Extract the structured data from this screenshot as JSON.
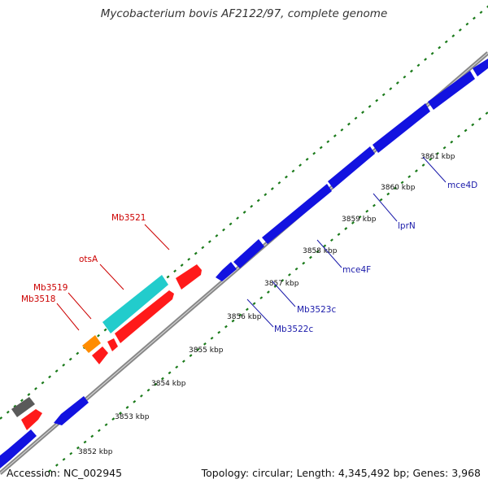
{
  "title": "Mycobacterium bovis AF2122/97, complete genome",
  "footer": {
    "accession": "Accession: NC_002945",
    "summary": "Topology: circular; Length: 4,345,492 bp; Genes: 3,968"
  },
  "colors": {
    "backbone": "#888888",
    "tick": "#1a7a1a",
    "forward_gene": "#ff1a1a",
    "reverse_gene": "#1212e0",
    "rna_gene": "#22cccc",
    "other_gene": "#ff8c00",
    "misc_gene": "#5a5a5a",
    "forward_label": "#cc0000",
    "reverse_label": "#1a1aaa"
  },
  "scale_labels": [
    "3852 kbp",
    "3853 kbp",
    "3854 kbp",
    "3855 kbp",
    "3856 kbp",
    "3857 kbp",
    "3858 kbp",
    "3859 kbp",
    "3860 kbp",
    "3861 kbp"
  ],
  "forward_labels": [
    "Mb3521",
    "otsA",
    "Mb3519",
    "Mb3518"
  ],
  "reverse_labels": [
    "mce4D",
    "lprN",
    "mce4F",
    "Mb3523c",
    "Mb3522c"
  ]
}
